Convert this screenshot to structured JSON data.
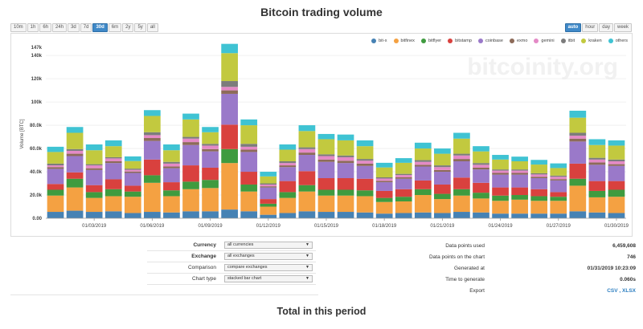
{
  "page": {
    "title": "Bitcoin trading volume",
    "subtitle": "Total in this period",
    "watermark": "bitcoinity.org"
  },
  "range_buttons": [
    "10m",
    "1h",
    "6h",
    "24h",
    "3d",
    "7d",
    "30d",
    "6m",
    "2y",
    "5y",
    "all"
  ],
  "range_active": "30d",
  "resolution_buttons": [
    "auto",
    "hour",
    "day",
    "week"
  ],
  "resolution_active": "auto",
  "controls": [
    {
      "label": "Currency",
      "value": "all currencies",
      "bold": true
    },
    {
      "label": "Exchange",
      "value": "all exchanges",
      "bold": true
    },
    {
      "label": "Comparison",
      "value": "compare exchanges",
      "bold": false
    },
    {
      "label": "Chart type",
      "value": "stacked bar chart",
      "bold": false
    }
  ],
  "stats": [
    {
      "label": "Data points used",
      "value": "6,459,608"
    },
    {
      "label": "Data points on the chart",
      "value": "746"
    },
    {
      "label": "Generated at",
      "value": "01/31/2019 10:23:09"
    },
    {
      "label": "Time to generate",
      "value": "0.060s"
    }
  ],
  "export": {
    "label": "Export",
    "csv": "CSV",
    "sep": ",",
    "xlsx": "XLSX"
  },
  "chart_data": {
    "type": "bar",
    "stacked": true,
    "ylabel": "Volume [BTC]",
    "ylim": [
      0,
      147000
    ],
    "yticks": [
      0,
      20000,
      40000,
      60000,
      80000,
      100000,
      120000,
      140000,
      147000
    ],
    "ytick_labels": [
      "0.00",
      "20.0k",
      "40.0k",
      "60.0k",
      "80.0k",
      "100k",
      "120k",
      "140k",
      "147k"
    ],
    "grid": true,
    "legend_position": "top-right",
    "categories": [
      "01/01/2019",
      "01/02/2019",
      "01/03/2019",
      "01/04/2019",
      "01/05/2019",
      "01/06/2019",
      "01/07/2019",
      "01/08/2019",
      "01/09/2019",
      "01/10/2019",
      "01/11/2019",
      "01/12/2019",
      "01/13/2019",
      "01/14/2019",
      "01/15/2019",
      "01/16/2019",
      "01/17/2019",
      "01/18/2019",
      "01/19/2019",
      "01/20/2019",
      "01/21/2019",
      "01/22/2019",
      "01/23/2019",
      "01/24/2019",
      "01/25/2019",
      "01/26/2019",
      "01/27/2019",
      "01/28/2019",
      "01/29/2019",
      "01/30/2019"
    ],
    "x_tick_labels": [
      "01/03/2019",
      "01/06/2019",
      "01/09/2019",
      "01/12/2019",
      "01/15/2019",
      "01/18/2019",
      "01/21/2019",
      "01/24/2019",
      "01/27/2019",
      "01/30/2019"
    ],
    "series": [
      {
        "name": "bit-x",
        "color": "#4682b4",
        "values": [
          5500,
          6500,
          5500,
          6000,
          4500,
          5500,
          5000,
          6000,
          6000,
          7500,
          6000,
          3000,
          4500,
          6000,
          5500,
          5500,
          5000,
          4000,
          4500,
          5000,
          4500,
          5500,
          5000,
          4000,
          4000,
          4000,
          4000,
          6000,
          5000,
          4500
        ]
      },
      {
        "name": "bitfinex",
        "color": "#f4a142",
        "values": [
          14000,
          20000,
          12000,
          13000,
          14000,
          25000,
          14000,
          19000,
          20000,
          40000,
          17000,
          7000,
          13000,
          17000,
          14000,
          14000,
          14000,
          10000,
          10000,
          15000,
          12000,
          14000,
          12000,
          11000,
          12000,
          11000,
          11000,
          22000,
          13000,
          14000
        ]
      },
      {
        "name": "bitflyer",
        "color": "#3f9b3f",
        "values": [
          5000,
          7500,
          5000,
          6000,
          4500,
          6500,
          5000,
          6500,
          7000,
          12000,
          6000,
          2500,
          5000,
          5500,
          5000,
          5000,
          5000,
          3500,
          4000,
          5000,
          4500,
          5500,
          5000,
          4500,
          4000,
          4000,
          3500,
          6000,
          5500,
          6000
        ]
      },
      {
        "name": "bitstamp",
        "color": "#d9413e",
        "values": [
          5000,
          5500,
          6000,
          8500,
          5000,
          13500,
          7000,
          14000,
          10500,
          21000,
          11000,
          4000,
          9500,
          12000,
          10000,
          10000,
          10000,
          6000,
          6500,
          7500,
          8000,
          10000,
          8500,
          7000,
          6500,
          6000,
          4000,
          13000,
          8500,
          7500
        ]
      },
      {
        "name": "coinbase",
        "color": "#9a79c9",
        "values": [
          13000,
          14000,
          13000,
          14000,
          11000,
          16000,
          12000,
          17500,
          14000,
          26500,
          17000,
          10000,
          12000,
          14000,
          14000,
          13000,
          11000,
          7500,
          9000,
          12000,
          11000,
          14000,
          11500,
          11000,
          11000,
          9500,
          10000,
          19000,
          14000,
          13000
        ]
      },
      {
        "name": "exmo",
        "color": "#8d6b59",
        "values": [
          1500,
          2000,
          1500,
          1500,
          1200,
          2500,
          1500,
          2500,
          2000,
          3000,
          2000,
          1000,
          1500,
          2000,
          2000,
          2000,
          2000,
          1200,
          1200,
          1500,
          1500,
          2000,
          1500,
          1500,
          1500,
          1200,
          1200,
          2500,
          2000,
          1500
        ]
      },
      {
        "name": "gemini",
        "color": "#e48ac6",
        "values": [
          1500,
          2500,
          2500,
          2500,
          1500,
          2500,
          2500,
          3000,
          3000,
          3000,
          2500,
          1500,
          2000,
          3000,
          3000,
          3000,
          2500,
          2000,
          2000,
          2500,
          2500,
          3000,
          2500,
          2000,
          2000,
          2000,
          2000,
          2500,
          2500,
          2500
        ]
      },
      {
        "name": "itbit",
        "color": "#7c7c7c",
        "values": [
          1500,
          1500,
          1000,
          1000,
          1000,
          2500,
          1500,
          1500,
          1500,
          5000,
          2500,
          1000,
          1500,
          1500,
          1500,
          1500,
          1500,
          1000,
          1000,
          1500,
          1500,
          1500,
          1500,
          1000,
          1000,
          1000,
          1000,
          2500,
          1500,
          1500
        ]
      },
      {
        "name": "kraken",
        "color": "#c2c93f",
        "values": [
          10000,
          14000,
          12000,
          9500,
          6500,
          14000,
          10000,
          15000,
          10000,
          24000,
          16000,
          6000,
          10000,
          14000,
          13000,
          13000,
          11000,
          8500,
          9500,
          10000,
          10000,
          13000,
          10000,
          8500,
          7000,
          7500,
          6500,
          13000,
          11000,
          12000
        ]
      },
      {
        "name": "others",
        "color": "#3fc3d3",
        "values": [
          4500,
          5000,
          5000,
          5000,
          4000,
          5000,
          5000,
          5000,
          4500,
          8000,
          5000,
          4000,
          4500,
          5000,
          4500,
          5000,
          5000,
          4000,
          4000,
          5000,
          4500,
          5000,
          4500,
          4000,
          4000,
          4000,
          4000,
          6000,
          5000,
          4500
        ]
      }
    ]
  }
}
